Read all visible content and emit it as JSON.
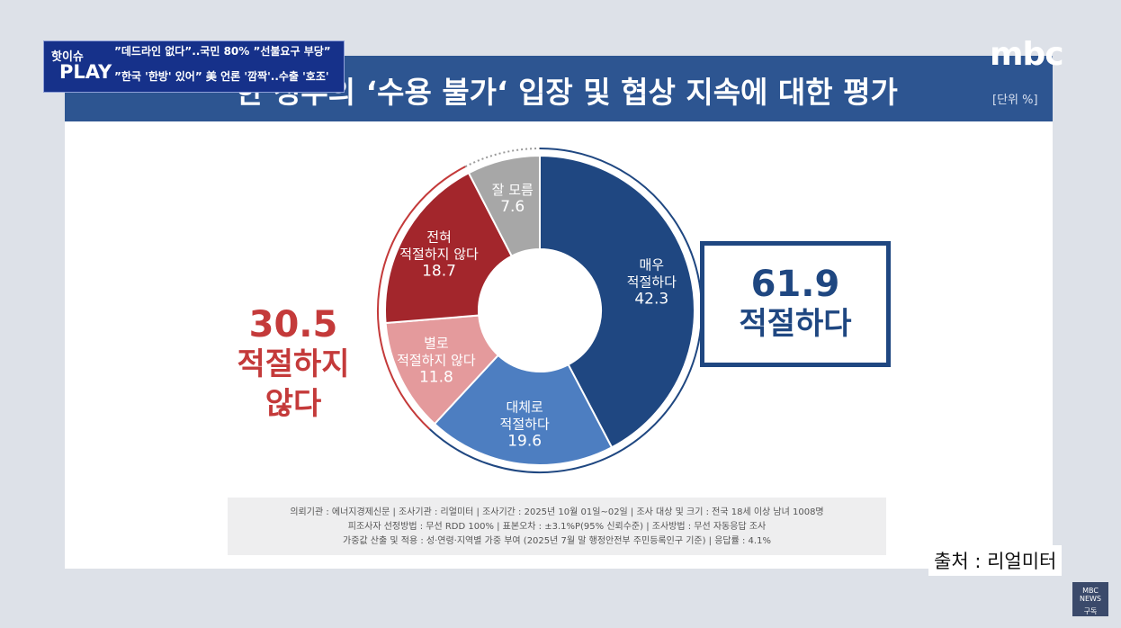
{
  "ticker": {
    "badge_top": "핫이슈",
    "badge_bottom": "PLAY",
    "lines": [
      "”데드라인 없다”..국민 80% ”선불요구 부당”",
      "”한국 '한방' 있어” 美 언론 '깜짝'..수출 '호조'"
    ]
  },
  "logo": "mbc",
  "unit": "[단위 %]",
  "footnote": [
    "의뢰기관 : 에너지경제신문  | 조사기관 : 리얼미터  |  조사기간 : 2025년 10월 01일~02일 | 조사 대상 및 크기 : 전국 18세 이상 남녀 1008명",
    "피조사자 선정방법 : 무선 RDD 100% | 표본오차 : ±3.1%P(95% 신뢰수준) | 조사방법 : 무선 자동응답 조사",
    "가중값 산출 및 적용 : 성·연령·지역별 가중 부여 (2025년 7월 말 행정안전부 주민등록인구 기준) | 응답률 : 4.1%"
  ],
  "source": "출처 : 리얼미터",
  "corner": {
    "brand": "MBC NEWS",
    "action": "구독"
  },
  "chart_data": {
    "type": "pie",
    "donut": true,
    "title": "한 정부의 ‘수용 불가‘ 입장 및 협상 지속에 대한 평가",
    "categories": [
      "매우\n적절하다",
      "대체로\n적절하다",
      "별로\n적절하지 않다",
      "전혀\n적절하지 않다",
      "잘 모름"
    ],
    "values": [
      42.3,
      19.6,
      11.8,
      18.7,
      7.6
    ],
    "colors": [
      "#1f4781",
      "#4d7ec1",
      "#e49a9c",
      "#a3262c",
      "#a7a7a7"
    ],
    "summaries": [
      {
        "value": "61.9",
        "label": "적절하다",
        "color": "#1f4781"
      },
      {
        "value": "30.5",
        "label": "적절하지\n않다",
        "color": "#c43a3a"
      }
    ]
  }
}
